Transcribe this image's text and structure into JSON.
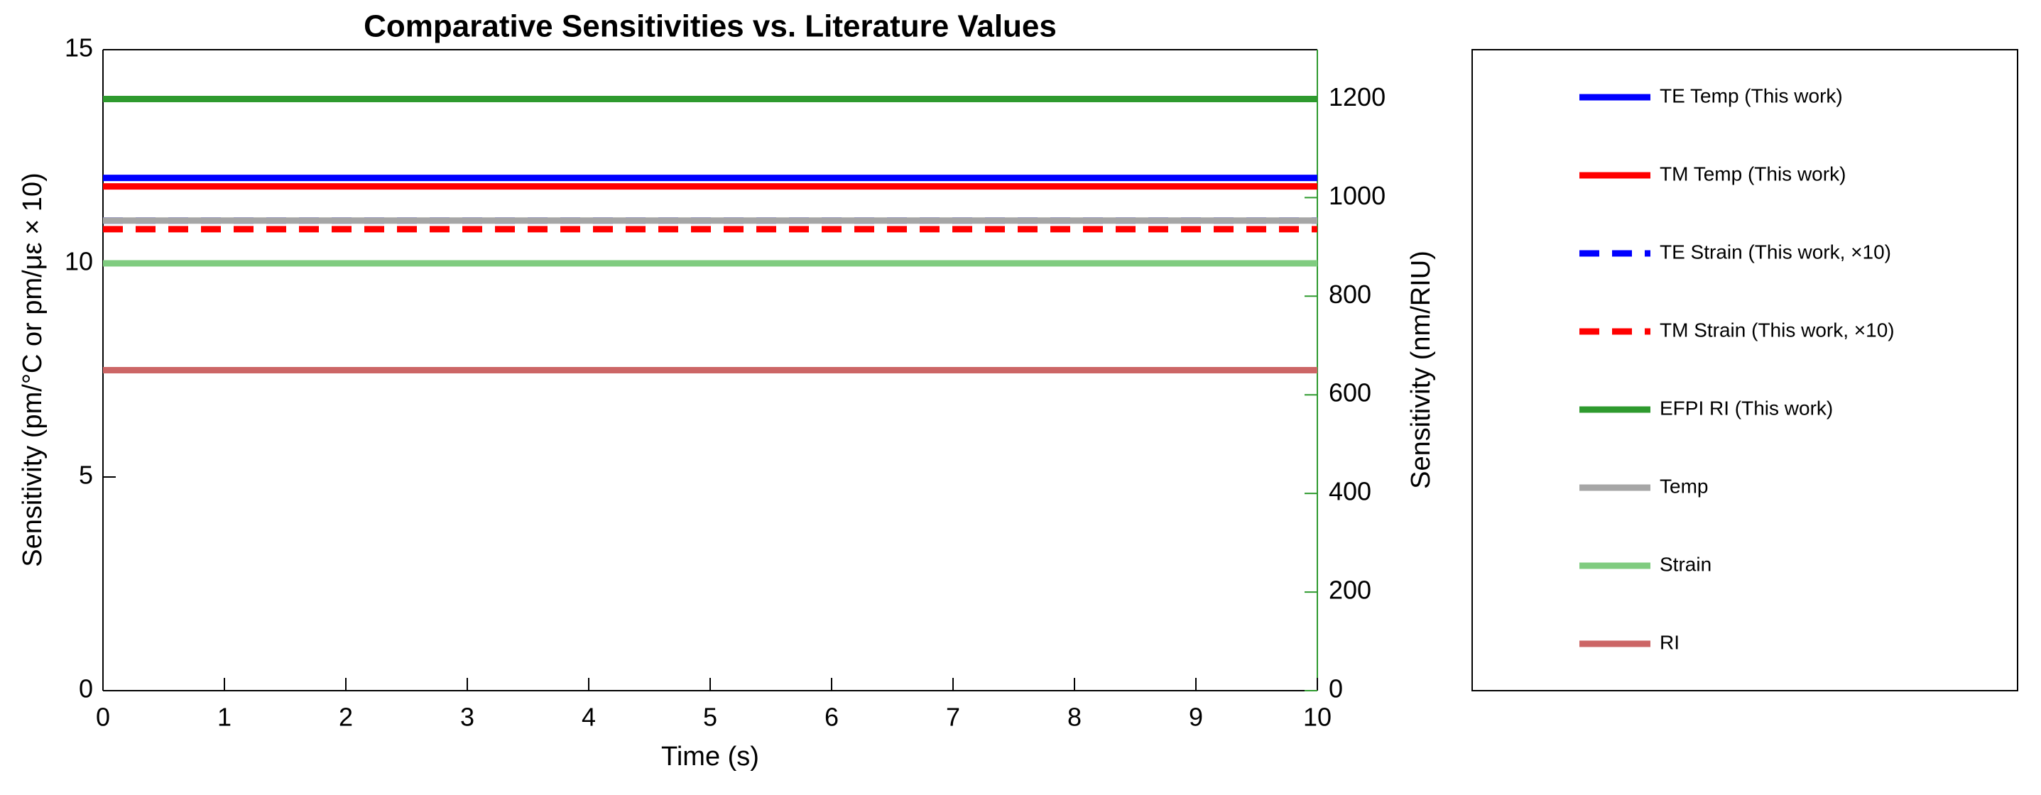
{
  "chart_data": {
    "type": "line",
    "title": "Comparative Sensitivities vs. Literature Values",
    "x_label": "Time (s)",
    "y_label": "Sensitivity (pm/°C or pm/με × 10)",
    "y2_label": "Sensitivity (nm/RIU)",
    "x": [
      0,
      10
    ],
    "xlim": [
      0,
      10
    ],
    "xticks": [
      0,
      1,
      2,
      3,
      4,
      5,
      6,
      7,
      8,
      9,
      10
    ],
    "ylim": [
      0,
      15
    ],
    "yticks": [
      0,
      5,
      10,
      15
    ],
    "y2lim": [
      0,
      1300
    ],
    "y2ticks": [
      0,
      200,
      400,
      600,
      800,
      1000,
      1200
    ],
    "y2_color": "#2e9a2e",
    "legend": "outside-right",
    "series": [
      {
        "name": "TE Temp (This work)",
        "color": "#0000ff",
        "values": [
          12,
          12
        ],
        "dash": "solid"
      },
      {
        "name": "TM Temp (This work)",
        "color": "#ff0000",
        "values": [
          11.8,
          11.8
        ],
        "dash": "solid"
      },
      {
        "name": "TE Strain (This work, ×10)",
        "color": "#0000ff",
        "values": [
          11,
          11
        ],
        "dash": "dashed"
      },
      {
        "name": "TM Strain (This work, ×10)",
        "color": "#ff0000",
        "values": [
          10.8,
          10.8
        ],
        "dash": "dashed"
      },
      {
        "name": "EFPI RI (This work)",
        "color": "#2e9a2e",
        "values": [
          1200,
          1200
        ],
        "dash": "solid",
        "axis": "y2"
      },
      {
        "name": "Temp",
        "color": "#a6a6a6",
        "values": [
          11,
          11
        ],
        "dash": "solid"
      },
      {
        "name": "Strain",
        "color": "#80cc80",
        "values": [
          10,
          10
        ],
        "dash": "solid"
      },
      {
        "name": "RI",
        "color": "#cc6666",
        "values": [
          7.5,
          7.5
        ],
        "dash": "solid"
      }
    ]
  }
}
